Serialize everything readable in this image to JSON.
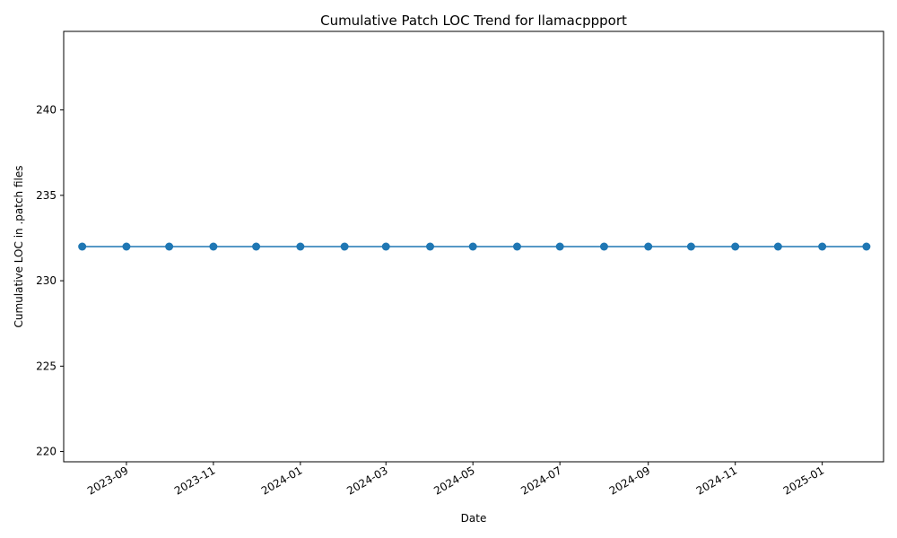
{
  "chart_data": {
    "type": "line",
    "title": "Cumulative Patch LOC Trend for llamacppport",
    "xlabel": "Date",
    "ylabel": "Cumulative LOC in .patch files",
    "x_is_date": true,
    "xlim": [
      "2023-07-19",
      "2025-02-13"
    ],
    "ylim": [
      219.4,
      244.6
    ],
    "x_ticks": [
      "2023-09",
      "2023-11",
      "2024-01",
      "2024-03",
      "2024-05",
      "2024-07",
      "2024-09",
      "2024-11",
      "2025-01"
    ],
    "y_ticks": [
      220,
      225,
      230,
      235,
      240
    ],
    "grid": false,
    "legend": "none",
    "series": [
      {
        "color": "#1f77b4",
        "marker": "circle",
        "x": [
          "2023-08-01",
          "2023-09-01",
          "2023-10-01",
          "2023-11-01",
          "2023-12-01",
          "2024-01-01",
          "2024-02-01",
          "2024-03-01",
          "2024-04-01",
          "2024-05-01",
          "2024-06-01",
          "2024-07-01",
          "2024-08-01",
          "2024-09-01",
          "2024-10-01",
          "2024-11-01",
          "2024-12-01",
          "2025-01-01",
          "2025-02-01"
        ],
        "y": [
          232,
          232,
          232,
          232,
          232,
          232,
          232,
          232,
          232,
          232,
          232,
          232,
          232,
          232,
          232,
          232,
          232,
          232,
          232
        ]
      }
    ]
  }
}
